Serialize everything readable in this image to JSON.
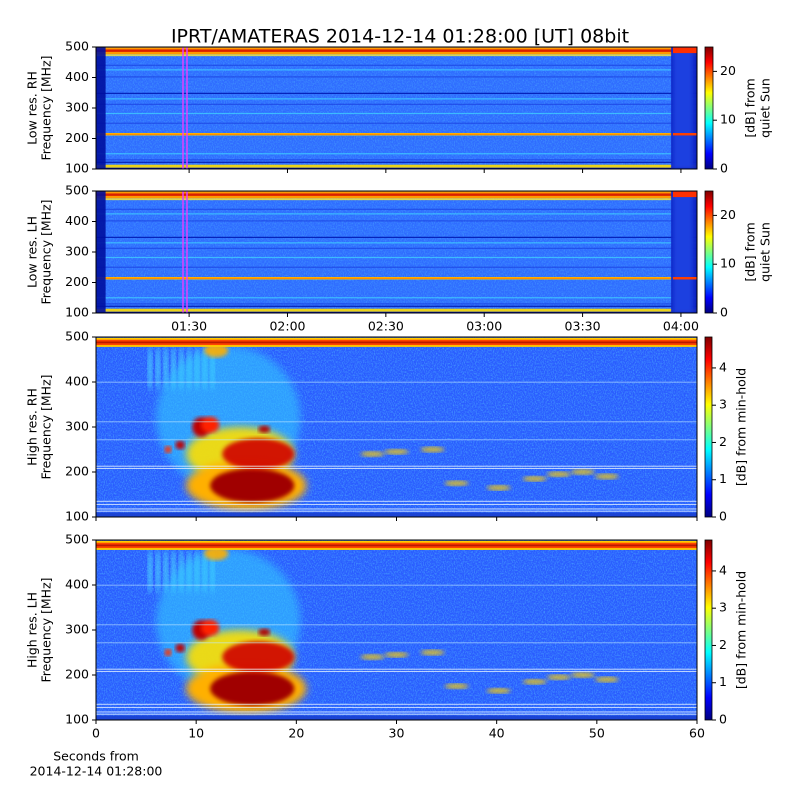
{
  "chart_data": [
    {
      "type": "heatmap",
      "title": "IPRT/AMATERAS 2014-12-14 01:28:00 [UT]   08bit",
      "ylabel": [
        "Low res. RH",
        "Frequency [MHz]"
      ],
      "ylim": [
        100,
        500
      ],
      "yticks": [
        100,
        200,
        300,
        400,
        500
      ],
      "colormap": "jet",
      "clim": [
        0,
        25
      ],
      "cticks": [
        0,
        10,
        20
      ],
      "clabel": [
        "[dB] from",
        "quiet Sun"
      ]
    },
    {
      "type": "heatmap",
      "ylabel": [
        "Low res. LH",
        "Frequency [MHz]"
      ],
      "ylim": [
        100,
        500
      ],
      "yticks": [
        100,
        200,
        300,
        400,
        500
      ],
      "xlim": [
        61.6,
        244.9
      ],
      "xticks": [
        {
          "value": 90,
          "label": "01:30"
        },
        {
          "value": 120,
          "label": "02:00"
        },
        {
          "value": 150,
          "label": "02:30"
        },
        {
          "value": 180,
          "label": "03:00"
        },
        {
          "value": 210,
          "label": "03:30"
        },
        {
          "value": 240,
          "label": "04:00"
        }
      ],
      "colormap": "jet",
      "clim": [
        0,
        25
      ],
      "cticks": [
        0,
        10,
        20
      ],
      "clabel": [
        "[dB] from",
        "quiet Sun"
      ]
    },
    {
      "type": "heatmap",
      "ylabel": [
        "High res. RH",
        "Frequency [MHz]"
      ],
      "ylim": [
        100,
        500
      ],
      "yticks": [
        100,
        200,
        300,
        400,
        500
      ],
      "colormap": "jet",
      "clim": [
        0,
        4.83
      ],
      "cticks": [
        0,
        1,
        2,
        3,
        4
      ],
      "clabel": [
        "[dB] from min-hold"
      ]
    },
    {
      "type": "heatmap",
      "ylabel": [
        "High res. LH",
        "Frequency [MHz]"
      ],
      "ylim": [
        100,
        500
      ],
      "yticks": [
        100,
        200,
        300,
        400,
        500
      ],
      "xlim": [
        0,
        60
      ],
      "xticks": [
        0,
        10,
        20,
        30,
        40,
        50,
        60
      ],
      "xlabel": [
        "Seconds from",
        "2014-12-14 01:28:00"
      ],
      "colormap": "jet",
      "clim": [
        0,
        4.83
      ],
      "cticks": [
        0,
        1,
        2,
        3,
        4
      ],
      "clabel": [
        "[dB] from min-hold"
      ]
    }
  ]
}
